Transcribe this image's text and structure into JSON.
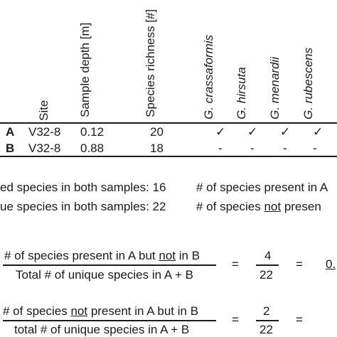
{
  "table": {
    "headers": {
      "site": "Site",
      "depth": "Sample depth [m]",
      "richness": "Species richness [#]",
      "species": [
        "G. crassaformis",
        "G. hirsuta",
        "G. menardii",
        "G. rubescens"
      ]
    },
    "rows": [
      {
        "label": "A",
        "site": "V32-8",
        "depth": "0.12",
        "richness": "20",
        "marks": [
          "✓",
          "✓",
          "✓",
          "✓"
        ]
      },
      {
        "label": "B",
        "site": "V32-8",
        "depth": "0.88",
        "richness": "18",
        "marks": [
          "-",
          "-",
          "-",
          "-"
        ]
      }
    ]
  },
  "stats": {
    "shared": "ed species in both samples: 16",
    "unique": "ue species in both samples: 22",
    "present_prefix": "# of species present in A",
    "notpresent_prefix": "# of species ",
    "notpresent_not": "not",
    "notpresent_suffix": " presen"
  },
  "eq1": {
    "num_a": "# of species present in A but ",
    "num_not": "not",
    "num_b": " in B",
    "den": "Total # of unique species in A + B",
    "eq": "=",
    "frac_num": "4",
    "frac_den": "22",
    "eq2": "=",
    "result": "0."
  },
  "eq2": {
    "num_a": "# of species ",
    "num_not": "not",
    "num_b": " present in A but in B",
    "den": "total # of unique species in A + B",
    "eq": "=",
    "frac_num": "2",
    "frac_den": "22",
    "eq2": "="
  }
}
